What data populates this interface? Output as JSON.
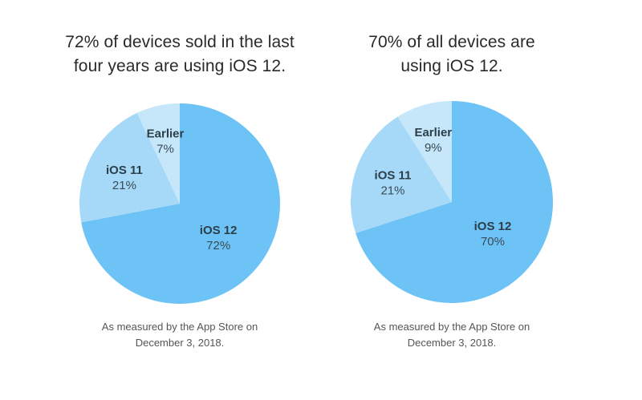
{
  "colors": {
    "ios12": "#6dc3f5",
    "ios11": "#a6d9f7",
    "earlier": "#c6e7fa",
    "title_text": "#2a2a2a",
    "note_text": "#555555"
  },
  "chart_data": [
    {
      "type": "pie",
      "title": "72% of devices sold in the last four years are using iOS 12.",
      "title_lines": [
        "72% of devices sold in the last",
        "four years are using iOS 12."
      ],
      "slices": [
        {
          "label": "iOS 12",
          "value": 72,
          "value_label": "72%",
          "color_key": "ios12"
        },
        {
          "label": "iOS 11",
          "value": 21,
          "value_label": "21%",
          "color_key": "ios11"
        },
        {
          "label": "Earlier",
          "value": 7,
          "value_label": "7%",
          "color_key": "earlier"
        }
      ],
      "start": "12 o'clock, clockwise",
      "note_lines": [
        "As measured by the App Store on",
        "December 3, 2018."
      ]
    },
    {
      "type": "pie",
      "title": "70% of all devices are using iOS 12.",
      "title_lines": [
        "70% of all devices are",
        "using iOS 12."
      ],
      "slices": [
        {
          "label": "iOS 12",
          "value": 70,
          "value_label": "70%",
          "color_key": "ios12"
        },
        {
          "label": "iOS 11",
          "value": 21,
          "value_label": "21%",
          "color_key": "ios11"
        },
        {
          "label": "Earlier",
          "value": 9,
          "value_label": "9%",
          "color_key": "earlier"
        }
      ],
      "start": "12 o'clock, clockwise",
      "note_lines": [
        "As measured by the App Store on",
        "December 3, 2018."
      ]
    }
  ]
}
